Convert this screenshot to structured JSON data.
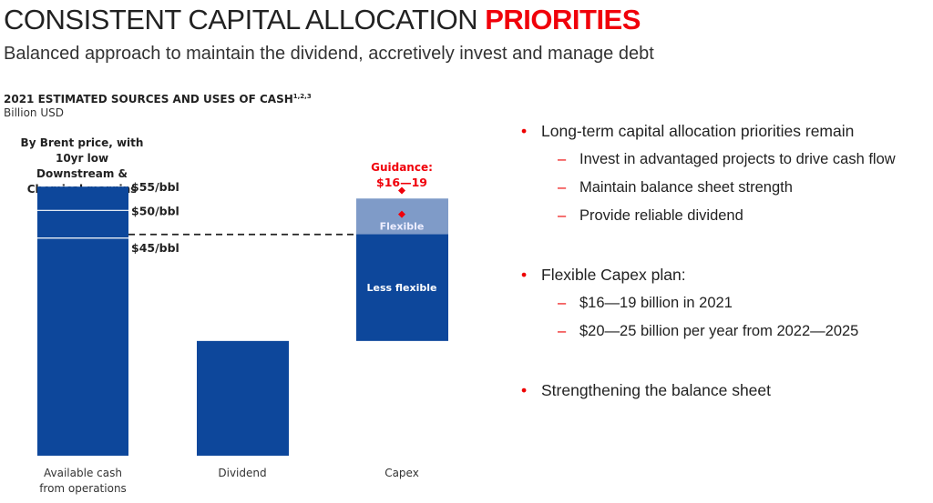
{
  "header": {
    "title_main": "CONSISTENT CAPITAL ALLOCATION",
    "title_highlight": "PRIORITIES",
    "subtitle": "Balanced approach to maintain the dividend, accretively invest and manage debt"
  },
  "chart_data": {
    "type": "bar",
    "subtype": "waterfall",
    "title": "2021 ESTIMATED SOURCES AND USES OF CASH",
    "title_footnotes": "1,2,3",
    "ylabel": "Billion USD",
    "note": "By Brent price, with 10yr low Downstream & Chemical margins",
    "categories": [
      "Available cash from operations",
      "Dividend",
      "Capex"
    ],
    "available_cash": [
      {
        "label": "$45/bbl",
        "value": 27.5
      },
      {
        "label": "$50/bbl",
        "value": 31
      },
      {
        "label": "$55/bbl",
        "value": 34
      }
    ],
    "dividend": 14.5,
    "capex": {
      "less_flexible": 13.5,
      "flexible": 4.5,
      "less_flexible_label": "Less flexible",
      "flexible_label": "Flexible"
    },
    "guidance": {
      "label": "Guidance:",
      "range_label": "$16—19",
      "low": 16,
      "high": 19
    },
    "ylim": [
      0,
      36
    ],
    "colors": {
      "bar": "#0d479b",
      "flexible": "#7f9bc8",
      "guidance": "#f0000a"
    }
  },
  "bullets": [
    {
      "text": "Long-term capital allocation priorities remain",
      "subs": [
        "Invest in advantaged projects to drive cash flow",
        "Maintain balance sheet strength",
        "Provide reliable dividend"
      ]
    },
    {
      "text": "Flexible Capex plan:",
      "subs": [
        "$16—19 billion in 2021",
        "$20—25 billion per year from 2022—2025"
      ]
    },
    {
      "text": "Strengthening the balance sheet",
      "subs": []
    }
  ]
}
